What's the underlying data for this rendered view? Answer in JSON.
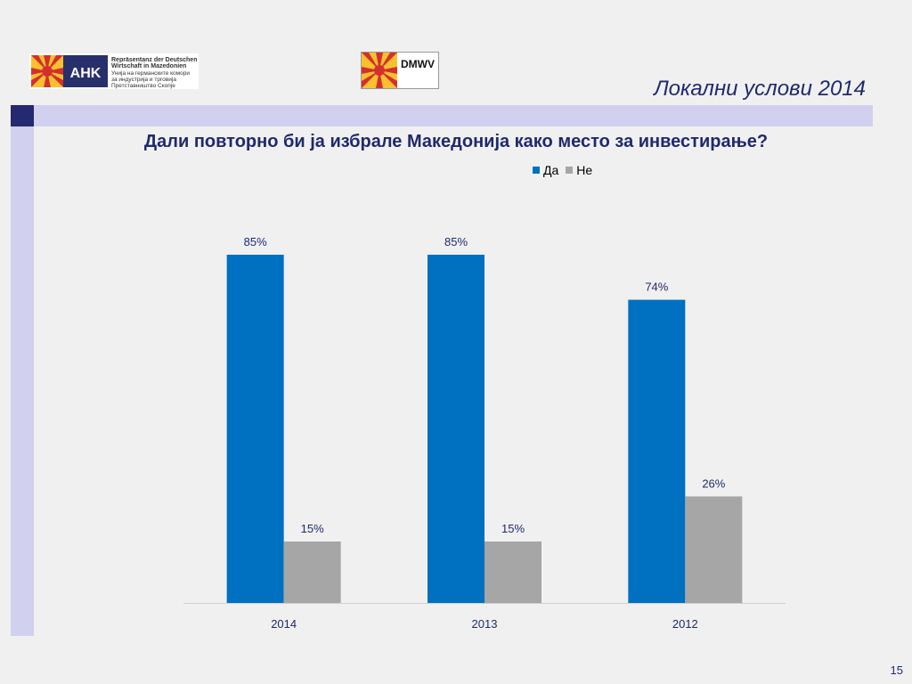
{
  "header": {
    "slide_title": "Локални услови 2014",
    "ahk_logo": {
      "mark": "AHK",
      "line1": "Repräsentanz der Deutschen",
      "line2": "Wirtschaft in Mazedonien",
      "line3": "Унија на германските комори",
      "line4": "за индустрија и трговија",
      "line5": "Претставништво Скопје"
    },
    "dmwv_logo": {
      "mark": "DMWV"
    }
  },
  "chart_data": {
    "type": "bar",
    "title": "Дали повторно би ја избрале Македонија како место за инвестирање?",
    "categories": [
      "2014",
      "2013",
      "2012"
    ],
    "series": [
      {
        "name": "Да",
        "values": [
          85,
          85,
          74
        ],
        "labels": [
          "85%",
          "85%",
          "74%"
        ],
        "color": "#0070c0"
      },
      {
        "name": "Не",
        "values": [
          15,
          15,
          26
        ],
        "labels": [
          "15%",
          "15%",
          "26%"
        ],
        "color": "#a6a6a6"
      }
    ],
    "xlabel": "",
    "ylabel": "",
    "ylim": [
      0,
      100
    ],
    "grid": false,
    "legend_position": "top-right"
  },
  "footer": {
    "page_number": "15"
  },
  "colors": {
    "accent_navy": "#252970",
    "band_lavender": "#d1d0ee",
    "title_navy": "#1f2a6b"
  }
}
